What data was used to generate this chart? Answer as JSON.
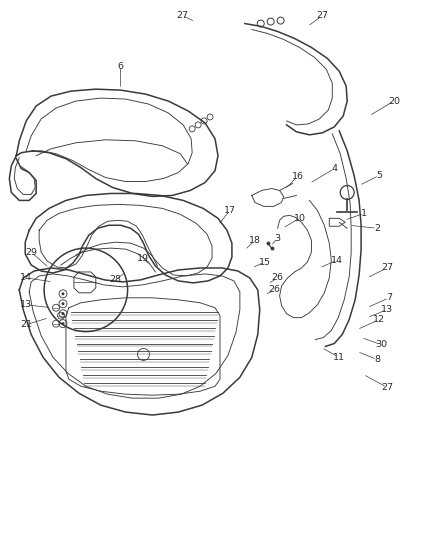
{
  "bg_color": "#ffffff",
  "fig_width": 4.38,
  "fig_height": 5.33,
  "dpi": 100,
  "line_color": "#3a3a3a",
  "label_color": "#2a2a2a",
  "label_fontsize": 6.8
}
